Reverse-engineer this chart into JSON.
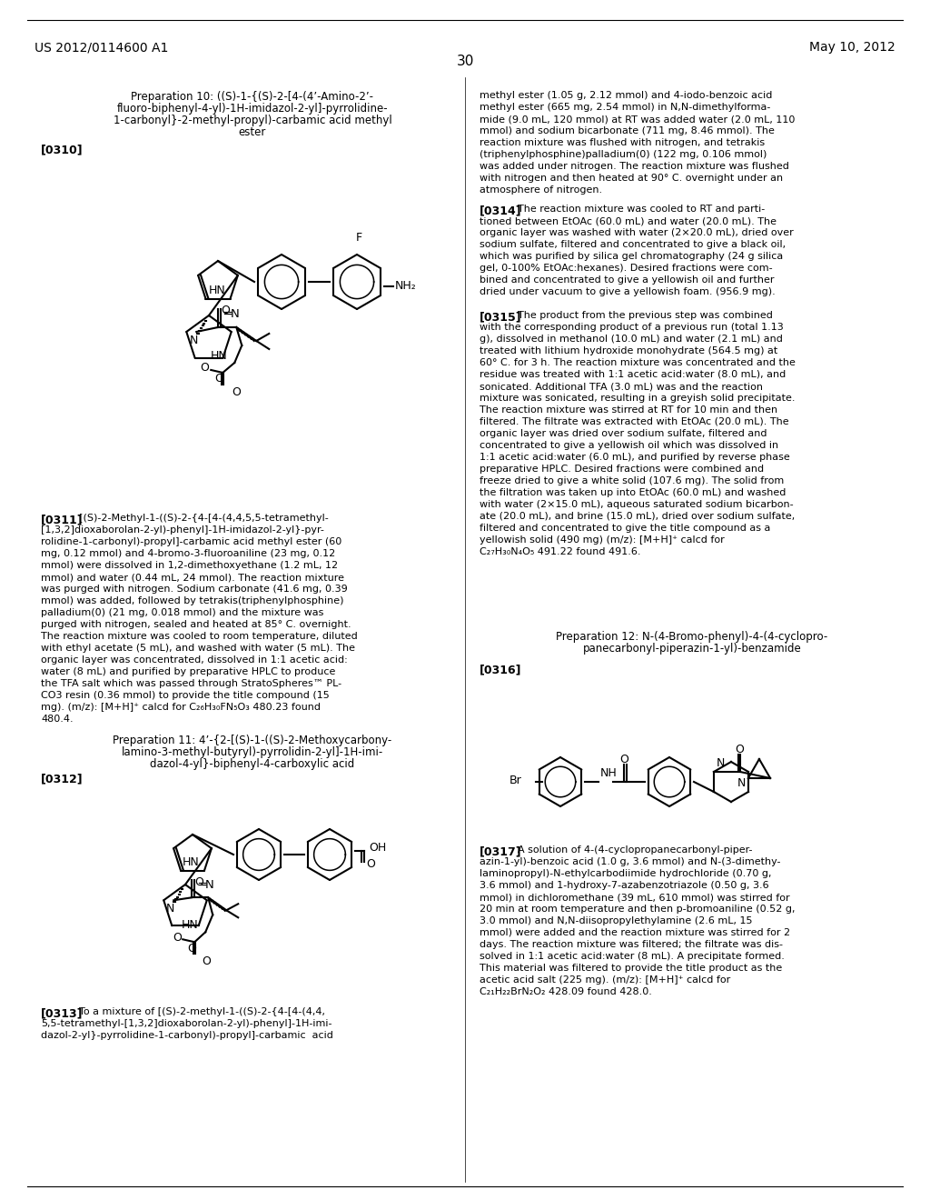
{
  "background_color": "#ffffff",
  "text_color": "#000000",
  "figsize": [
    10.24,
    13.2
  ],
  "dpi": 100,
  "page_header_left": "US 2012/0114600 A1",
  "page_header_right": "May 10, 2012",
  "page_number": "30",
  "prep10_title_lines": [
    "Preparation 10: ((S)-1-{(S)-2-[4-(4’-Amino-2’-",
    "fluoro-biphenyl-4-yl)-1H-imidazol-2-yl]-pyrrolidine-",
    "1-carbonyl}-2-methyl-propyl)-carbamic acid methyl",
    "ester"
  ],
  "prep11_title_lines": [
    "Preparation 11: 4’-{2-[(S)-1-((S)-2-Methoxycarbony-",
    "lamino-3-methyl-butyryl)-pyrrolidin-2-yl]-1H-imi-",
    "dazol-4-yl}-biphenyl-4-carboxylic acid"
  ],
  "prep12_title_lines": [
    "Preparation 12: N-(4-Bromo-phenyl)-4-(4-cyclopro-",
    "panecarbonyl-piperazin-1-yl)-benzamide"
  ],
  "para0311_lines": [
    "[(S)-2-Methyl-1-((S)-2-{4-[4-(4,4,5,5-tetramethyl-",
    "[1,3,2]dioxaborolan-2-yl)-phenyl]-1H-imidazol-2-yl}-pyr-",
    "rolidine-1-carbonyl)-propyl]-carbamic acid methyl ester (60",
    "mg, 0.12 mmol) and 4-bromo-3-fluoroaniline (23 mg, 0.12",
    "mmol) were dissolved in 1,2-dimethoxyethane (1.2 mL, 12",
    "mmol) and water (0.44 mL, 24 mmol). The reaction mixture",
    "was purged with nitrogen. Sodium carbonate (41.6 mg, 0.39",
    "mmol) was added, followed by tetrakis(triphenylphosphine)",
    "palladium(0) (21 mg, 0.018 mmol) and the mixture was",
    "purged with nitrogen, sealed and heated at 85° C. overnight.",
    "The reaction mixture was cooled to room temperature, diluted",
    "with ethyl acetate (5 mL), and washed with water (5 mL). The",
    "organic layer was concentrated, dissolved in 1:1 acetic acid:",
    "water (8 mL) and purified by preparative HPLC to produce",
    "the TFA salt which was passed through StratoSpheres™ PL-",
    "CO3 resin (0.36 mmol) to provide the title compound (15",
    "mg). (m/z): [M+H]⁺ calcd for C₂₆H₃₀FN₅O₃ 480.23 found",
    "480.4."
  ],
  "para0313_lines": [
    "To a mixture of [(S)-2-methyl-1-((S)-2-{4-[4-(4,4,",
    "5,5-tetramethyl-[1,3,2]dioxaborolan-2-yl)-phenyl]-1H-imi-",
    "dazol-2-yl}-pyrrolidine-1-carbonyl)-propyl]-carbamic  acid"
  ],
  "right_para0310_lines": [
    "methyl ester (1.05 g, 2.12 mmol) and 4-iodo-benzoic acid",
    "methyl ester (665 mg, 2.54 mmol) in N,N-dimethylforma-",
    "mide (9.0 mL, 120 mmol) at RT was added water (2.0 mL, 110",
    "mmol) and sodium bicarbonate (711 mg, 8.46 mmol). The",
    "reaction mixture was flushed with nitrogen, and tetrakis",
    "(triphenylphosphine)palladium(0) (122 mg, 0.106 mmol)",
    "was added under nitrogen. The reaction mixture was flushed",
    "with nitrogen and then heated at 90° C. overnight under an",
    "atmosphere of nitrogen."
  ],
  "para0314_lines": [
    "The reaction mixture was cooled to RT and parti-",
    "tioned between EtOAc (60.0 mL) and water (20.0 mL). The",
    "organic layer was washed with water (2×20.0 mL), dried over",
    "sodium sulfate, filtered and concentrated to give a black oil,",
    "which was purified by silica gel chromatography (24 g silica",
    "gel, 0-100% EtOAc:hexanes). Desired fractions were com-",
    "bined and concentrated to give a yellowish oil and further",
    "dried under vacuum to give a yellowish foam. (956.9 mg)."
  ],
  "para0315_lines": [
    "The product from the previous step was combined",
    "with the corresponding product of a previous run (total 1.13",
    "g), dissolved in methanol (10.0 mL) and water (2.1 mL) and",
    "treated with lithium hydroxide monohydrate (564.5 mg) at",
    "60° C. for 3 h. The reaction mixture was concentrated and the",
    "residue was treated with 1:1 acetic acid:water (8.0 mL), and",
    "sonicated. Additional TFA (3.0 mL) was and the reaction",
    "mixture was sonicated, resulting in a greyish solid precipitate.",
    "The reaction mixture was stirred at RT for 10 min and then",
    "filtered. The filtrate was extracted with EtOAc (20.0 mL). The",
    "organic layer was dried over sodium sulfate, filtered and",
    "concentrated to give a yellowish oil which was dissolved in",
    "1:1 acetic acid:water (6.0 mL), and purified by reverse phase",
    "preparative HPLC. Desired fractions were combined and",
    "freeze dried to give a white solid (107.6 mg). The solid from",
    "the filtration was taken up into EtOAc (60.0 mL) and washed",
    "with water (2×15.0 mL), aqueous saturated sodium bicarbon-",
    "ate (20.0 mL), and brine (15.0 mL), dried over sodium sulfate,",
    "filtered and concentrated to give the title compound as a",
    "yellowish solid (490 mg) (m/z): [M+H]⁺ calcd for",
    "C₂₇H₃₀N₄O₅ 491.22 found 491.6."
  ],
  "para0317_lines": [
    "A solution of 4-(4-cyclopropanecarbonyl-piper-",
    "azin-1-yl)-benzoic acid (1.0 g, 3.6 mmol) and N-(3-dimethy-",
    "laminopropyl)-N-ethylcarbodiimide hydrochloride (0.70 g,",
    "3.6 mmol) and 1-hydroxy-7-azabenzotriazole (0.50 g, 3.6",
    "mmol) in dichloromethane (39 mL, 610 mmol) was stirred for",
    "20 min at room temperature and then p-bromoaniline (0.52 g,",
    "3.0 mmol) and N,N-diisopropylethylamine (2.6 mL, 15",
    "mmol) were added and the reaction mixture was stirred for 2",
    "days. The reaction mixture was filtered; the filtrate was dis-",
    "solved in 1:1 acetic acid:water (8 mL). A precipitate formed.",
    "This material was filtered to provide the title product as the",
    "acetic acid salt (225 mg). (m/z): [M+H]⁺ calcd for",
    "C₂₁H₂₂BrN₂O₂ 428.09 found 428.0."
  ]
}
